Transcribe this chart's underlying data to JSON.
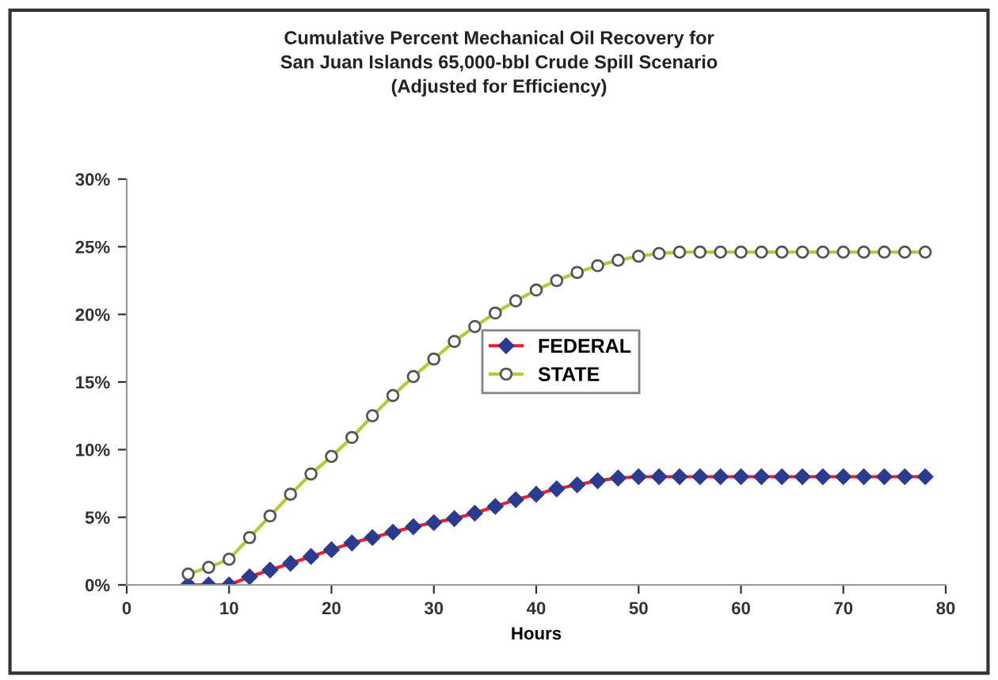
{
  "chart_data": {
    "type": "line",
    "title": "Cumulative Percent Mechanical Oil Recovery for\nSan Juan Islands 65,000-bbl Crude Spill Scenario\n(Adjusted for Efficiency)",
    "xlabel": "Hours",
    "x": [
      6,
      8,
      10,
      12,
      14,
      16,
      18,
      20,
      22,
      24,
      26,
      28,
      30,
      32,
      34,
      36,
      38,
      40,
      42,
      44,
      46,
      48,
      50,
      52,
      54,
      56,
      58,
      60,
      62,
      64,
      66,
      68,
      70,
      72,
      74,
      76,
      78
    ],
    "series": [
      {
        "name": "FEDERAL",
        "color": "#e8202a",
        "marker": "diamond",
        "values": [
          0,
          0,
          0,
          0.6,
          1.1,
          1.6,
          2.1,
          2.6,
          3.1,
          3.5,
          3.9,
          4.3,
          4.6,
          4.9,
          5.3,
          5.8,
          6.3,
          6.7,
          7.1,
          7.4,
          7.7,
          7.9,
          8.0,
          8.0,
          8.0,
          8.0,
          8.0,
          8.0,
          8.0,
          8.0,
          8.0,
          8.0,
          8.0,
          8.0,
          8.0,
          8.0,
          8.0
        ]
      },
      {
        "name": "STATE",
        "color": "#b5c93a",
        "marker": "circle",
        "values": [
          0.8,
          1.3,
          1.9,
          3.5,
          5.1,
          6.7,
          8.2,
          9.5,
          10.9,
          12.5,
          14.0,
          15.4,
          16.7,
          18.0,
          19.1,
          20.1,
          21.0,
          21.8,
          22.5,
          23.1,
          23.6,
          24.0,
          24.3,
          24.5,
          24.6,
          24.6,
          24.6,
          24.6,
          24.6,
          24.6,
          24.6,
          24.6,
          24.6,
          24.6,
          24.6,
          24.6,
          24.6
        ]
      }
    ],
    "xlim": [
      0,
      80
    ],
    "xticks": [
      0,
      10,
      20,
      30,
      40,
      50,
      60,
      70,
      80
    ],
    "ylim": [
      0,
      30
    ],
    "yticks": [
      {
        "value": 0,
        "label": "0%"
      },
      {
        "value": 5,
        "label": "5%"
      },
      {
        "value": 10,
        "label": "10%"
      },
      {
        "value": 15,
        "label": "15%"
      },
      {
        "value": 20,
        "label": "20%"
      },
      {
        "value": 25,
        "label": "25%"
      },
      {
        "value": 30,
        "label": "30%"
      }
    ],
    "grid": false,
    "legend": "center",
    "line_style": "solid"
  }
}
